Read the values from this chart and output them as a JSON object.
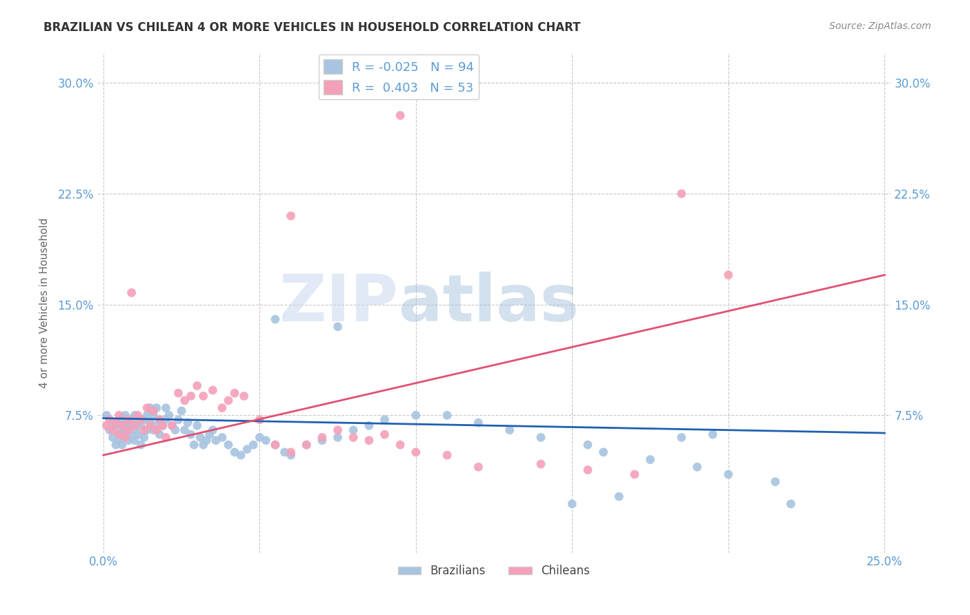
{
  "title": "BRAZILIAN VS CHILEAN 4 OR MORE VEHICLES IN HOUSEHOLD CORRELATION CHART",
  "source": "Source: ZipAtlas.com",
  "ylabel": "4 or more Vehicles in Household",
  "legend_label_1": "Brazilians",
  "legend_label_2": "Chileans",
  "r1": -0.025,
  "n1": 94,
  "r2": 0.403,
  "n2": 53,
  "xlim": [
    -0.002,
    0.252
  ],
  "ylim": [
    -0.018,
    0.32
  ],
  "xticks": [
    0.0,
    0.05,
    0.1,
    0.15,
    0.2,
    0.25
  ],
  "xticklabels": [
    "0.0%",
    "",
    "",
    "",
    "",
    "25.0%"
  ],
  "yticks": [
    0.075,
    0.15,
    0.225,
    0.3
  ],
  "yticklabels": [
    "7.5%",
    "15.0%",
    "22.5%",
    "30.0%"
  ],
  "color_blue": "#A8C4E0",
  "color_pink": "#F4A0B8",
  "line_color_blue": "#2060B0",
  "line_color_pink": "#E05070",
  "watermark_zip": "ZIP",
  "watermark_atlas": "atlas",
  "title_color": "#333333",
  "axis_color": "#5B9BD5",
  "background_color": "#FFFFFF",
  "grid_color": "#C8C8C8",
  "blue_trendline_y0": 0.073,
  "blue_trendline_y1": 0.063,
  "pink_trendline_y0": 0.048,
  "pink_trendline_y1": 0.17,
  "brazilians_x": [
    0.001,
    0.002,
    0.003,
    0.003,
    0.004,
    0.004,
    0.005,
    0.005,
    0.005,
    0.006,
    0.006,
    0.006,
    0.007,
    0.007,
    0.007,
    0.008,
    0.008,
    0.008,
    0.009,
    0.009,
    0.009,
    0.01,
    0.01,
    0.01,
    0.011,
    0.011,
    0.012,
    0.012,
    0.013,
    0.013,
    0.014,
    0.014,
    0.015,
    0.015,
    0.016,
    0.016,
    0.017,
    0.017,
    0.018,
    0.018,
    0.019,
    0.02,
    0.02,
    0.021,
    0.022,
    0.023,
    0.024,
    0.025,
    0.026,
    0.027,
    0.028,
    0.029,
    0.03,
    0.031,
    0.032,
    0.033,
    0.034,
    0.035,
    0.036,
    0.038,
    0.04,
    0.042,
    0.044,
    0.046,
    0.048,
    0.05,
    0.052,
    0.055,
    0.058,
    0.06,
    0.065,
    0.07,
    0.075,
    0.08,
    0.085,
    0.09,
    0.1,
    0.11,
    0.12,
    0.13,
    0.14,
    0.155,
    0.16,
    0.175,
    0.19,
    0.2,
    0.215,
    0.22,
    0.195,
    0.185,
    0.15,
    0.165,
    0.055,
    0.075
  ],
  "brazilians_y": [
    0.075,
    0.065,
    0.07,
    0.06,
    0.055,
    0.068,
    0.062,
    0.07,
    0.058,
    0.072,
    0.065,
    0.055,
    0.068,
    0.062,
    0.075,
    0.07,
    0.065,
    0.058,
    0.072,
    0.068,
    0.06,
    0.075,
    0.065,
    0.058,
    0.07,
    0.062,
    0.068,
    0.055,
    0.072,
    0.06,
    0.075,
    0.065,
    0.08,
    0.07,
    0.075,
    0.065,
    0.08,
    0.068,
    0.072,
    0.062,
    0.068,
    0.08,
    0.072,
    0.075,
    0.068,
    0.065,
    0.072,
    0.078,
    0.065,
    0.07,
    0.062,
    0.055,
    0.068,
    0.06,
    0.055,
    0.058,
    0.062,
    0.065,
    0.058,
    0.06,
    0.055,
    0.05,
    0.048,
    0.052,
    0.055,
    0.06,
    0.058,
    0.055,
    0.05,
    0.048,
    0.055,
    0.058,
    0.06,
    0.065,
    0.068,
    0.072,
    0.075,
    0.075,
    0.07,
    0.065,
    0.06,
    0.055,
    0.05,
    0.045,
    0.04,
    0.035,
    0.03,
    0.015,
    0.062,
    0.06,
    0.015,
    0.02,
    0.14,
    0.135
  ],
  "chileans_x": [
    0.001,
    0.002,
    0.003,
    0.004,
    0.005,
    0.005,
    0.006,
    0.007,
    0.008,
    0.008,
    0.009,
    0.01,
    0.011,
    0.012,
    0.013,
    0.014,
    0.015,
    0.016,
    0.017,
    0.018,
    0.019,
    0.02,
    0.022,
    0.024,
    0.026,
    0.028,
    0.03,
    0.032,
    0.035,
    0.038,
    0.04,
    0.042,
    0.045,
    0.05,
    0.055,
    0.06,
    0.065,
    0.07,
    0.075,
    0.08,
    0.085,
    0.09,
    0.095,
    0.1,
    0.11,
    0.12,
    0.14,
    0.155,
    0.17,
    0.185,
    0.2,
    0.06,
    0.095
  ],
  "chileans_y": [
    0.068,
    0.072,
    0.065,
    0.07,
    0.062,
    0.075,
    0.068,
    0.06,
    0.072,
    0.065,
    0.158,
    0.068,
    0.075,
    0.072,
    0.065,
    0.08,
    0.068,
    0.078,
    0.065,
    0.072,
    0.068,
    0.06,
    0.068,
    0.09,
    0.085,
    0.088,
    0.095,
    0.088,
    0.092,
    0.08,
    0.085,
    0.09,
    0.088,
    0.072,
    0.055,
    0.05,
    0.055,
    0.06,
    0.065,
    0.06,
    0.058,
    0.062,
    0.055,
    0.05,
    0.048,
    0.04,
    0.042,
    0.038,
    0.035,
    0.225,
    0.17,
    0.21,
    0.278
  ]
}
